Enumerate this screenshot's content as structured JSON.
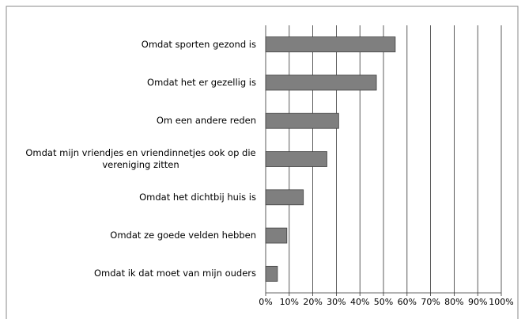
{
  "chart_data": {
    "type": "bar",
    "orientation": "horizontal",
    "categories": [
      "Omdat sporten gezond is",
      "Omdat het er gezellig is",
      "Om een andere reden",
      "Omdat mijn vriendjes en vriendinnetjes ook op die vereniging zitten",
      "Omdat het dichtbij huis is",
      "Omdat ze goede velden hebben",
      "Omdat ik dat moet van mijn ouders"
    ],
    "values": [
      55,
      47,
      31,
      26,
      16,
      9,
      5
    ],
    "color": "#7f7f7f",
    "xlim": [
      0,
      100
    ],
    "xticks": [
      {
        "value": 0,
        "label": "0%"
      },
      {
        "value": 10,
        "label": "10%"
      },
      {
        "value": 20,
        "label": "20%"
      },
      {
        "value": 30,
        "label": "30%"
      },
      {
        "value": 40,
        "label": "40%"
      },
      {
        "value": 50,
        "label": "50%"
      },
      {
        "value": 60,
        "label": "60%"
      },
      {
        "value": 70,
        "label": "70%"
      },
      {
        "value": 80,
        "label": "80%"
      },
      {
        "value": 90,
        "label": "90%"
      },
      {
        "value": 100,
        "label": "100%"
      }
    ],
    "grid": true
  }
}
